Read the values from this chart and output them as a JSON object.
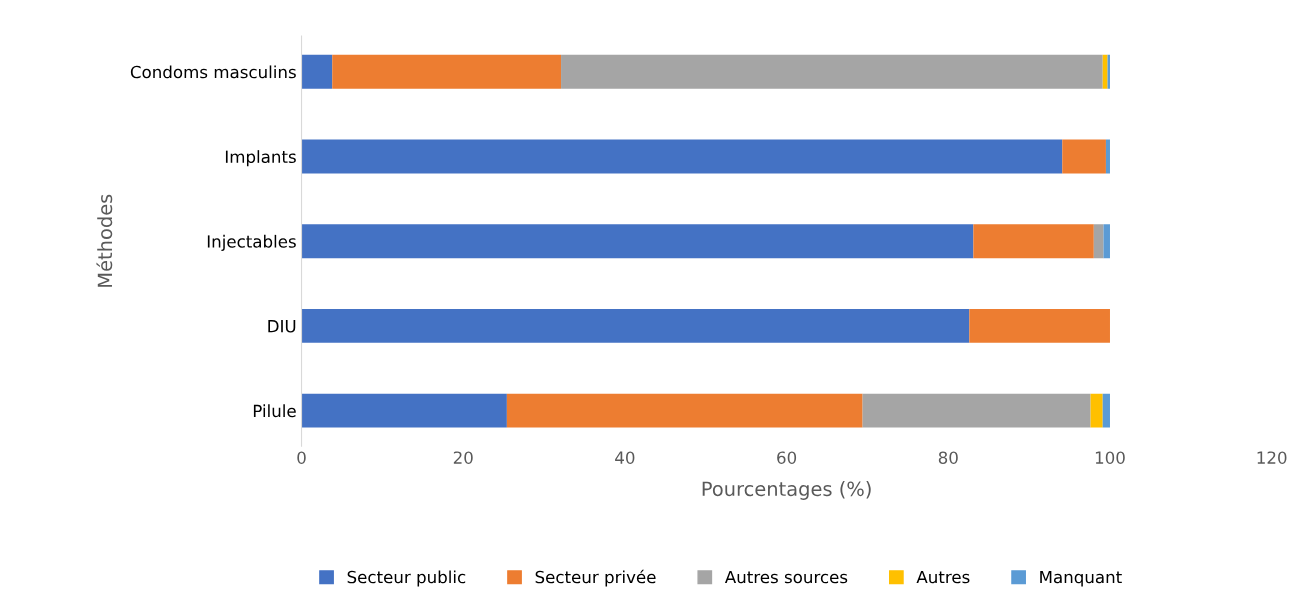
{
  "chart_data": {
    "type": "bar",
    "orientation": "horizontal",
    "stacked": true,
    "xlabel": "Pourcentages (%)",
    "ylabel": "Méthodes",
    "categories": [
      "Condoms masculins",
      "Implants",
      "Injectables",
      "DIU",
      "Pilule"
    ],
    "series": [
      {
        "name": "Secteur public",
        "color": "#4472c4",
        "values": [
          3.8,
          94.1,
          83.1,
          82.6,
          25.4
        ]
      },
      {
        "name": "Secteur privée",
        "color": "#ed7d31",
        "values": [
          28.3,
          5.4,
          14.9,
          17.4,
          44.0
        ]
      },
      {
        "name": "Autres sources",
        "color": "#a5a5a5",
        "values": [
          67.0,
          null,
          1.2,
          null,
          28.2
        ]
      },
      {
        "name": "Autres",
        "color": "#ffc000",
        "values": [
          0.6,
          null,
          null,
          null,
          1.5
        ]
      },
      {
        "name": "Manquant",
        "color": "#5b9bd5",
        "values": [
          0.3,
          0.5,
          0.8,
          null,
          0.9
        ]
      }
    ],
    "xlim": [
      0,
      120
    ],
    "xticks": [
      0,
      20,
      40,
      60,
      80,
      100,
      120
    ],
    "grid": false,
    "legend": "bottom"
  }
}
